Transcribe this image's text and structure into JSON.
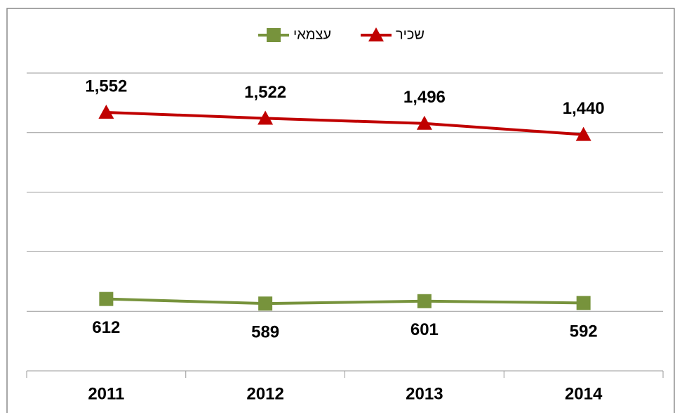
{
  "chart_data": {
    "type": "line",
    "categories": [
      "2011",
      "2012",
      "2013",
      "2014"
    ],
    "series": [
      {
        "name": "עצמאי",
        "color": "#77933c",
        "marker": "square",
        "values": [
          612,
          589,
          601,
          592
        ],
        "value_labels": [
          "612",
          "589",
          "601",
          "592"
        ]
      },
      {
        "name": "שכיר",
        "color": "#c00000",
        "marker": "triangle",
        "values": [
          1552,
          1522,
          1496,
          1440
        ],
        "value_labels": [
          "1,552",
          "1,522",
          "1,496",
          "1,440"
        ]
      }
    ],
    "ylim": [
      250,
      1750
    ],
    "yticks": [
      550,
      850,
      1150,
      1450,
      1750
    ],
    "grid": true,
    "legend": "top"
  }
}
